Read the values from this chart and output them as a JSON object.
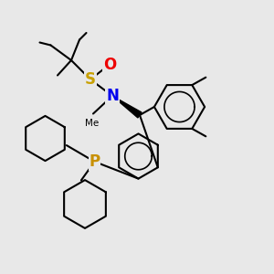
{
  "bg_color": "#e8e8e8",
  "bond_color": "#000000",
  "N_color": "#0000ee",
  "O_color": "#ee0000",
  "S_color": "#c8a000",
  "P_color": "#c89000",
  "line_width": 1.5,
  "figsize": [
    3.0,
    3.0
  ],
  "dpi": 100,
  "xlim": [
    0,
    10
  ],
  "ylim": [
    0,
    10
  ]
}
